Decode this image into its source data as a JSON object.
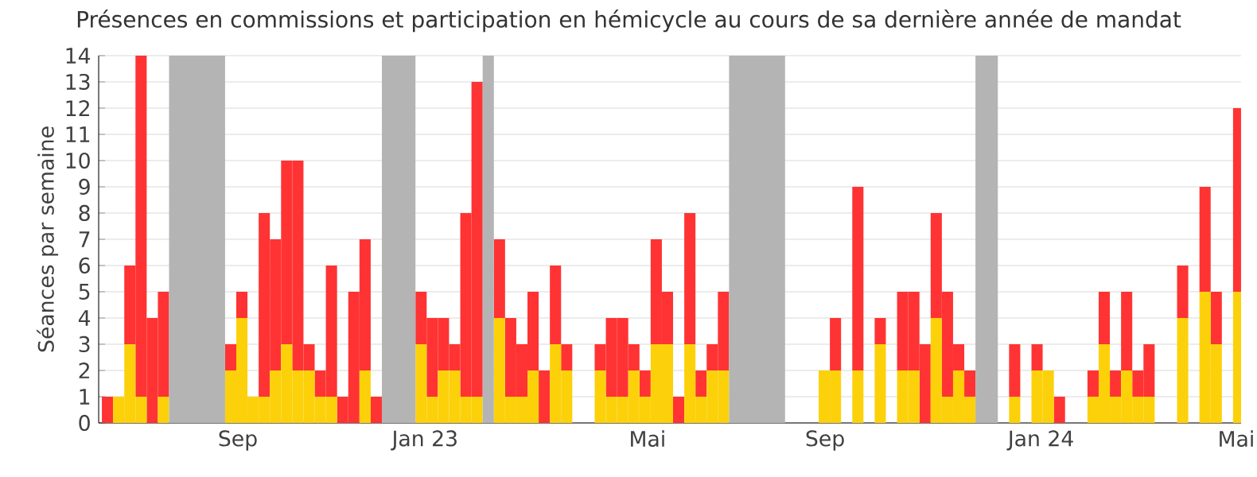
{
  "chart_data": {
    "type": "bar",
    "stacked": true,
    "title": "Présences en commissions et participation en hémicycle au cours de sa dernière année de mandat",
    "ylabel": "Séances par semaine",
    "x": [
      "2022-06-13",
      "2022-06-20",
      "2022-06-27",
      "2022-07-04",
      "2022-07-11",
      "2022-07-18",
      "2022-07-25",
      "2022-08-01",
      "2022-08-08",
      "2022-08-15",
      "2022-08-22",
      "2022-08-29",
      "2022-09-05",
      "2022-09-12",
      "2022-09-19",
      "2022-09-26",
      "2022-10-03",
      "2022-10-10",
      "2022-10-17",
      "2022-10-24",
      "2022-10-31",
      "2022-11-07",
      "2022-11-14",
      "2022-11-21",
      "2022-11-28",
      "2022-12-05",
      "2022-12-12",
      "2022-12-19",
      "2022-12-26",
      "2023-01-02",
      "2023-01-09",
      "2023-01-16",
      "2023-01-23",
      "2023-01-30",
      "2023-02-06",
      "2023-02-13",
      "2023-02-20",
      "2023-02-27",
      "2023-03-06",
      "2023-03-13",
      "2023-03-20",
      "2023-03-27",
      "2023-04-03",
      "2023-04-10",
      "2023-04-17",
      "2023-04-24",
      "2023-05-01",
      "2023-05-08",
      "2023-05-15",
      "2023-05-22",
      "2023-05-29",
      "2023-06-05",
      "2023-06-12",
      "2023-06-19",
      "2023-06-26",
      "2023-07-03",
      "2023-07-10",
      "2023-07-17",
      "2023-07-24",
      "2023-07-31",
      "2023-08-07",
      "2023-08-14",
      "2023-08-21",
      "2023-08-28",
      "2023-09-04",
      "2023-09-11",
      "2023-09-18",
      "2023-09-25",
      "2023-10-02",
      "2023-10-09",
      "2023-10-16",
      "2023-10-23",
      "2023-10-30",
      "2023-11-06",
      "2023-11-13",
      "2023-11-20",
      "2023-11-27",
      "2023-12-04",
      "2023-12-11",
      "2023-12-18",
      "2023-12-25",
      "2024-01-01",
      "2024-01-08",
      "2024-01-15",
      "2024-01-22",
      "2024-01-29",
      "2024-02-05",
      "2024-02-12",
      "2024-02-19",
      "2024-02-26",
      "2024-03-04",
      "2024-03-11",
      "2024-03-18",
      "2024-03-25",
      "2024-04-01",
      "2024-04-08",
      "2024-04-15",
      "2024-04-22",
      "2024-04-29",
      "2024-05-06",
      "2024-05-13",
      "2024-05-20"
    ],
    "series": [
      {
        "color": "#fcd10a",
        "values": [
          0,
          1,
          3,
          1,
          0,
          1,
          0,
          0,
          0,
          0,
          0,
          2,
          4,
          1,
          1,
          2,
          3,
          2,
          2,
          1,
          1,
          0,
          0,
          2,
          0,
          0,
          0,
          0,
          3,
          1,
          2,
          2,
          1,
          1,
          0,
          4,
          1,
          1,
          2,
          0,
          3,
          2,
          0,
          0,
          2,
          1,
          1,
          2,
          1,
          3,
          3,
          0,
          3,
          1,
          2,
          2,
          0,
          0,
          0,
          0,
          0,
          0,
          0,
          0,
          2,
          2,
          0,
          2,
          0,
          3,
          0,
          2,
          2,
          0,
          4,
          1,
          2,
          1,
          0,
          0,
          0,
          1,
          0,
          2,
          2,
          0,
          0,
          0,
          1,
          3,
          1,
          2,
          1,
          1,
          0,
          0,
          4,
          0,
          5,
          3,
          0,
          5
        ]
      },
      {
        "color": "#ff3333",
        "values": [
          1,
          0,
          3,
          13,
          4,
          4,
          0,
          0,
          0,
          0,
          0,
          1,
          1,
          0,
          7,
          5,
          7,
          8,
          1,
          1,
          5,
          1,
          5,
          5,
          1,
          0,
          0,
          0,
          2,
          3,
          2,
          1,
          7,
          12,
          0,
          3,
          3,
          2,
          3,
          2,
          3,
          1,
          0,
          0,
          1,
          3,
          3,
          1,
          1,
          4,
          2,
          1,
          5,
          1,
          1,
          3,
          0,
          0,
          0,
          0,
          0,
          0,
          0,
          0,
          0,
          2,
          0,
          7,
          0,
          1,
          0,
          3,
          3,
          3,
          4,
          4,
          1,
          1,
          0,
          0,
          0,
          2,
          0,
          1,
          0,
          1,
          0,
          0,
          1,
          2,
          1,
          3,
          1,
          2,
          0,
          0,
          2,
          0,
          4,
          2,
          0,
          7
        ]
      }
    ],
    "bands": [
      {
        "axis": "x",
        "from": "2022-07-25",
        "to": "2022-08-29",
        "color": "#b4b4b4"
      },
      {
        "axis": "x",
        "from": "2022-12-05",
        "to": "2022-12-26",
        "color": "#b4b4b4"
      },
      {
        "axis": "x",
        "from": "2023-02-06",
        "to": "2023-02-13",
        "color": "#b4b4b4"
      },
      {
        "axis": "x",
        "from": "2023-07-10",
        "to": "2023-08-14",
        "color": "#b4b4b4"
      },
      {
        "axis": "x",
        "from": "2023-12-11",
        "to": "2023-12-25",
        "color": "#b4b4b4"
      }
    ],
    "xlim": [
      "2022-06-11",
      "2024-05-25"
    ],
    "xticks": [
      {
        "value": "2022-09-06",
        "label": "Sep"
      },
      {
        "value": "2023-01-01",
        "label": "Jan 23"
      },
      {
        "value": "2023-05-20",
        "label": "Mai"
      },
      {
        "value": "2023-09-08",
        "label": "Sep"
      },
      {
        "value": "2024-01-21",
        "label": "Jan 24"
      },
      {
        "value": "2024-05-22",
        "label": "Mai"
      }
    ],
    "ylim": [
      0,
      14
    ],
    "yticks": [
      0,
      1,
      2,
      3,
      4,
      5,
      6,
      7,
      8,
      9,
      10,
      11,
      12,
      13,
      14
    ],
    "grid": "y"
  }
}
